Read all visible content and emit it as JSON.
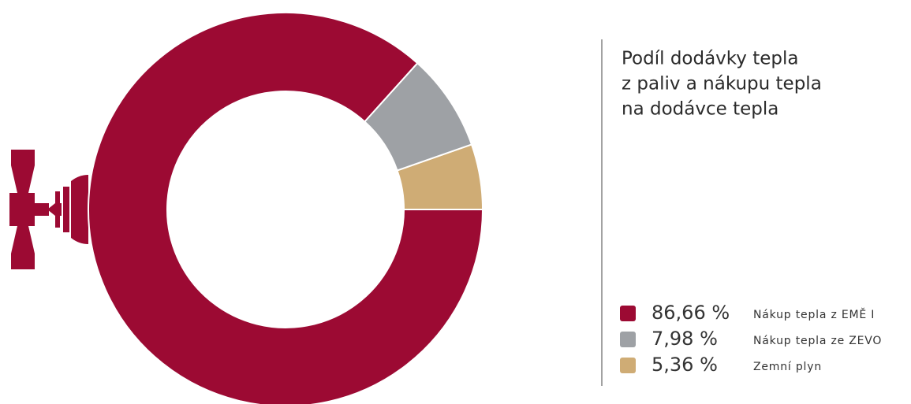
{
  "chart_data": {
    "type": "pie",
    "title": [
      "Podíl dodávky tepla",
      "z paliv a nákupu tepla",
      "na dodávce tepla"
    ],
    "categories": [
      "Nákup tepla z EMĚ I",
      "Nákup tepla ze ZEVO",
      "Zemní plyn"
    ],
    "values": [
      86.66,
      7.98,
      5.36
    ],
    "value_labels": [
      "86,66 %",
      "7,98 %",
      "5,36 %"
    ],
    "colors": [
      "#9c0a33",
      "#9ea1a5",
      "#cfac75"
    ]
  }
}
